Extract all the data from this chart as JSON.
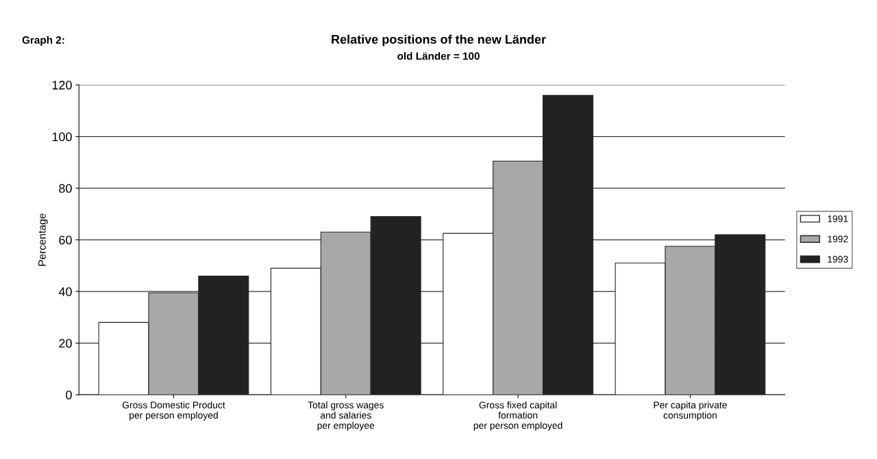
{
  "chart_data": {
    "type": "bar",
    "title": "Relative positions of the new Länder",
    "subtitle": "old Länder = 100",
    "ylabel": "Percentage",
    "annotations": [
      "Graph 2:"
    ],
    "categories": [
      "Gross Domestic Product\nper person employed",
      "Total gross wages\nand salaries\nper employee",
      "Gross fixed capital\nformation\nper person employed",
      "Per capita private\nconsumption"
    ],
    "series": [
      {
        "name": "1991",
        "color": "#ffffff",
        "values": [
          28,
          49,
          62.5,
          51
        ]
      },
      {
        "name": "1992",
        "color": "#a8a8a8",
        "values": [
          39.5,
          63,
          90.5,
          57.5
        ]
      },
      {
        "name": "1993",
        "color": "#222222",
        "values": [
          46,
          69,
          116,
          62
        ]
      }
    ],
    "ylim": [
      0,
      120
    ],
    "yticks": [
      0,
      20,
      40,
      60,
      80,
      100,
      120
    ],
    "grid": "y",
    "legend": "right"
  }
}
